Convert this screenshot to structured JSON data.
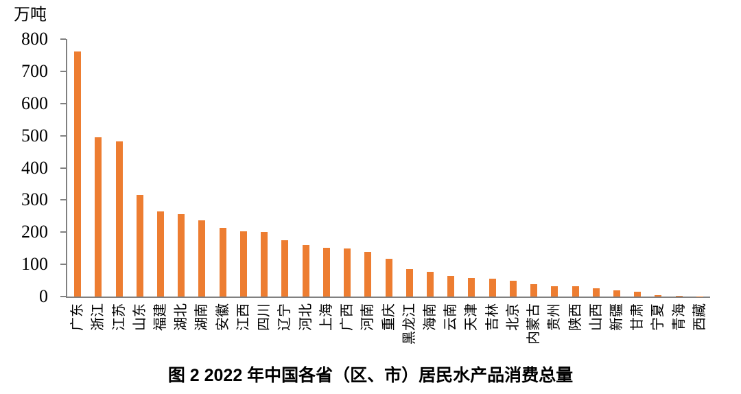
{
  "page": {
    "background": "#ffffff"
  },
  "chart_data": {
    "type": "bar",
    "title": "图 2  2022 年中国各省（区、市）居民水产品消费总量",
    "unit_label": "万吨",
    "xlabel": "",
    "ylabel": "万吨",
    "categories": [
      "广东",
      "浙江",
      "江苏",
      "山东",
      "福建",
      "湖北",
      "湖南",
      "安徽",
      "江西",
      "四川",
      "辽宁",
      "河北",
      "上海",
      "广西",
      "河南",
      "重庆",
      "黑龙江",
      "海南",
      "云南",
      "天津",
      "吉林",
      "北京",
      "内蒙古",
      "贵州",
      "陕西",
      "山西",
      "新疆",
      "甘肃",
      "宁夏",
      "青海",
      "西藏"
    ],
    "values": [
      762,
      494,
      482,
      315,
      265,
      257,
      237,
      213,
      203,
      201,
      176,
      160,
      151,
      149,
      139,
      117,
      86,
      76,
      63,
      58,
      56,
      49,
      38,
      33,
      31,
      26,
      19,
      15,
      5,
      2,
      1
    ],
    "ylim": [
      0,
      800
    ],
    "yticks": [
      0,
      100,
      200,
      300,
      400,
      500,
      600,
      700,
      800
    ],
    "bar_color": "#ED7D31",
    "axis_color": "#808080",
    "grid": false,
    "legend_position": "none",
    "x_label_rotation_deg": 90
  }
}
